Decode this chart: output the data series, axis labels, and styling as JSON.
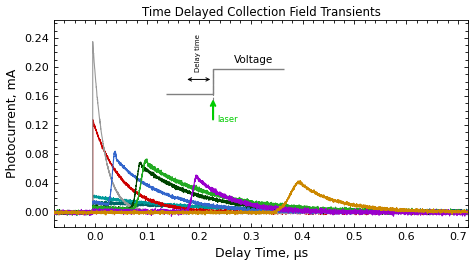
{
  "title": "Time Delayed Collection Field Transients",
  "xlabel": "Delay Time, μs",
  "ylabel": "Photocurrent, mA",
  "xlim": [
    -0.08,
    0.72
  ],
  "ylim": [
    -0.02,
    0.265
  ],
  "yticks": [
    0.0,
    0.04,
    0.08,
    0.12,
    0.16,
    0.2,
    0.24
  ],
  "xticks": [
    0.0,
    0.1,
    0.2,
    0.3,
    0.4,
    0.5,
    0.6,
    0.7
  ],
  "colors": {
    "gray": "#999999",
    "red": "#cc0000",
    "blue": "#3366cc",
    "dark_green": "#004400",
    "green": "#22aa22",
    "teal": "#009999",
    "purple": "#9900cc",
    "dark_teal": "#006666",
    "olive": "#cc8800"
  },
  "inset": {
    "voltage_label": "Voltage",
    "delay_label": "Delay time",
    "laser_label": "laser"
  },
  "figsize": [
    4.74,
    2.66
  ],
  "dpi": 100
}
